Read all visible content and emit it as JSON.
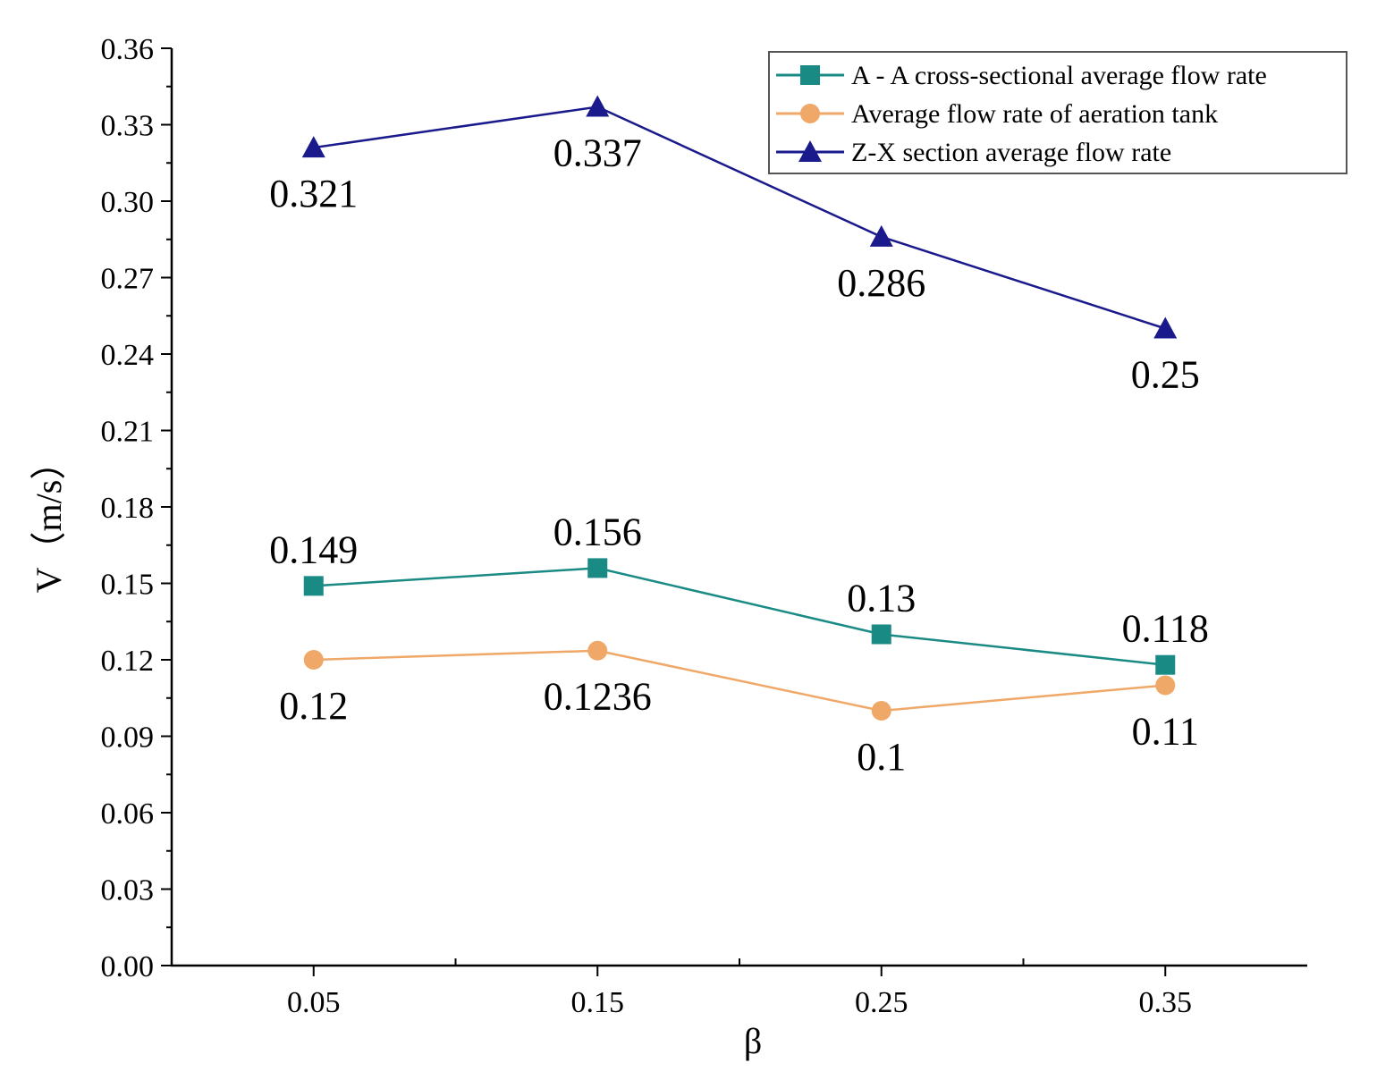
{
  "chart_data": {
    "type": "line",
    "xlabel": "β",
    "ylabel": "V（m/s）",
    "x_categories": [
      "0.05",
      "0.15",
      "0.25",
      "0.35"
    ],
    "x_values": [
      0.05,
      0.15,
      0.25,
      0.35
    ],
    "xlim": [
      0.0,
      0.4
    ],
    "ylim": [
      0.0,
      0.36
    ],
    "y_ticks": [
      "0.00",
      "0.03",
      "0.06",
      "0.09",
      "0.12",
      "0.15",
      "0.18",
      "0.21",
      "0.24",
      "0.27",
      "0.30",
      "0.33",
      "0.36"
    ],
    "grid": false,
    "legend_position": "top-right",
    "series": [
      {
        "name": "A - A cross-sectional average flow rate",
        "color": "#1a8a84",
        "marker": "square",
        "values": [
          0.149,
          0.156,
          0.13,
          0.118
        ],
        "labels": [
          "0.149",
          "0.156",
          "0.13",
          "0.118"
        ],
        "label_side": "above"
      },
      {
        "name": "Average flow rate of aeration tank",
        "color": "#f0a868",
        "marker": "circle",
        "values": [
          0.12,
          0.1236,
          0.1,
          0.11
        ],
        "labels": [
          "0.12",
          "0.1236",
          "0.1",
          "0.11"
        ],
        "label_side": "below"
      },
      {
        "name": "Z-X section average flow rate",
        "color": "#1a1a8c",
        "marker": "triangle",
        "values": [
          0.321,
          0.337,
          0.286,
          0.25
        ],
        "labels": [
          "0.321",
          "0.337",
          "0.286",
          "0.25"
        ],
        "label_side": "below"
      }
    ]
  }
}
